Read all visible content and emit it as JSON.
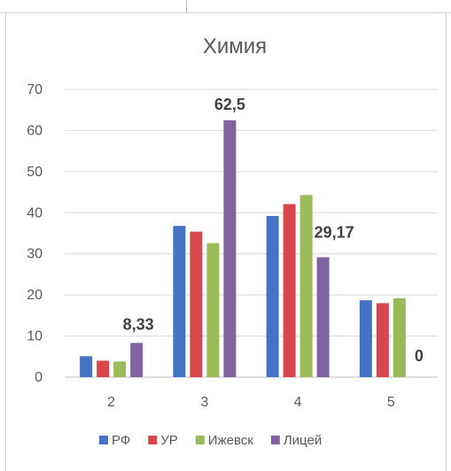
{
  "chart_data": {
    "type": "bar",
    "title": "Химия",
    "categories": [
      "2",
      "3",
      "4",
      "5"
    ],
    "ylim": [
      0,
      70
    ],
    "yticks": [
      "0",
      "10",
      "20",
      "30",
      "40",
      "50",
      "60",
      "70"
    ],
    "grid": true,
    "legend_position": "bottom",
    "series": [
      {
        "name": "РФ",
        "color": "#4472C4",
        "values": [
          5.1,
          36.8,
          39.2,
          18.7
        ]
      },
      {
        "name": "УР",
        "color": "#D9464B",
        "values": [
          4.0,
          35.4,
          42.1,
          18.0
        ]
      },
      {
        "name": "Ижевск",
        "color": "#9BBB59",
        "values": [
          3.8,
          32.6,
          44.3,
          19.2
        ]
      },
      {
        "name": "Лицей",
        "color": "#8064A2",
        "values": [
          8.33,
          62.5,
          29.17,
          0
        ]
      }
    ],
    "data_labels": [
      {
        "series": 3,
        "category": 0,
        "text": "8,33"
      },
      {
        "series": 3,
        "category": 1,
        "text": "62,5"
      },
      {
        "series": 3,
        "category": 2,
        "text": "29,17"
      },
      {
        "series": 3,
        "category": 3,
        "text": "0"
      }
    ]
  }
}
